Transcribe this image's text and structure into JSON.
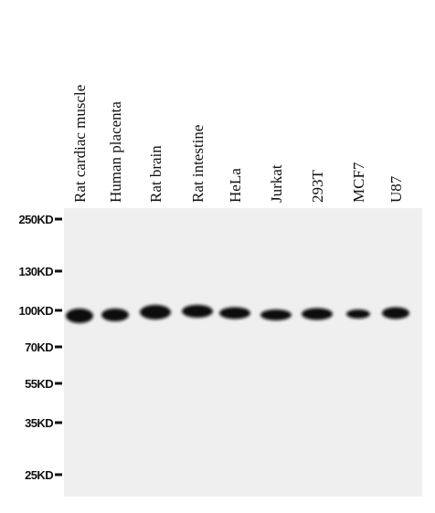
{
  "lanes": [
    "Rat cardiac muscle",
    "Human placenta",
    "Rat brain",
    "Rat intestine",
    "HeLa",
    "Jurkat",
    "293T",
    "MCF7",
    "U87"
  ],
  "markers": [
    "250KD",
    "130KD",
    "100KD",
    "70KD",
    "55KD",
    "35KD",
    "25KD"
  ]
}
